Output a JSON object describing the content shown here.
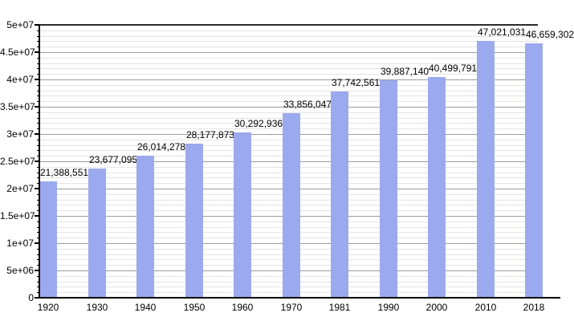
{
  "chart_data": {
    "type": "bar",
    "title": "",
    "xlabel": "",
    "ylabel": "",
    "categories": [
      "1920",
      "1930",
      "1940",
      "1950",
      "1960",
      "1970",
      "1981",
      "1990",
      "2000",
      "2010",
      "2018"
    ],
    "values": [
      21388551,
      23677095,
      26014278,
      28177873,
      30292936,
      33856047,
      37742561,
      39887140,
      40499791,
      47021031,
      46659302
    ],
    "value_labels": [
      "21,388,551",
      "23,677,095",
      "26,014,278",
      "28,177,873",
      "30,292,936",
      "33,856,047",
      "37,742,561",
      "39,887,140",
      "40,499,791",
      "47,021,031",
      "46,659,302"
    ],
    "ylim": [
      0,
      50000000
    ],
    "y_major_step": 5000000,
    "y_minor_step": 1000000,
    "y_ticks": [
      {
        "value": 50000000,
        "label": "5e+07"
      },
      {
        "value": 45000000,
        "label": "4.5e+07"
      },
      {
        "value": 40000000,
        "label": "4e+07"
      },
      {
        "value": 35000000,
        "label": "3.5e+07"
      },
      {
        "value": 30000000,
        "label": "3e+07"
      },
      {
        "value": 25000000,
        "label": "2.5e+07"
      },
      {
        "value": 20000000,
        "label": "2e+07"
      },
      {
        "value": 15000000,
        "label": "1.5e+07"
      },
      {
        "value": 10000000,
        "label": "1e+07"
      },
      {
        "value": 5000000,
        "label": "5e+06"
      },
      {
        "value": 0,
        "label": "0"
      }
    ],
    "grid": true,
    "legend": false,
    "bar_color": "#9baaee",
    "major_grid_color": "#9c9c9c",
    "minor_grid_color": "#e4e4e4",
    "axis_color": "#000000"
  }
}
